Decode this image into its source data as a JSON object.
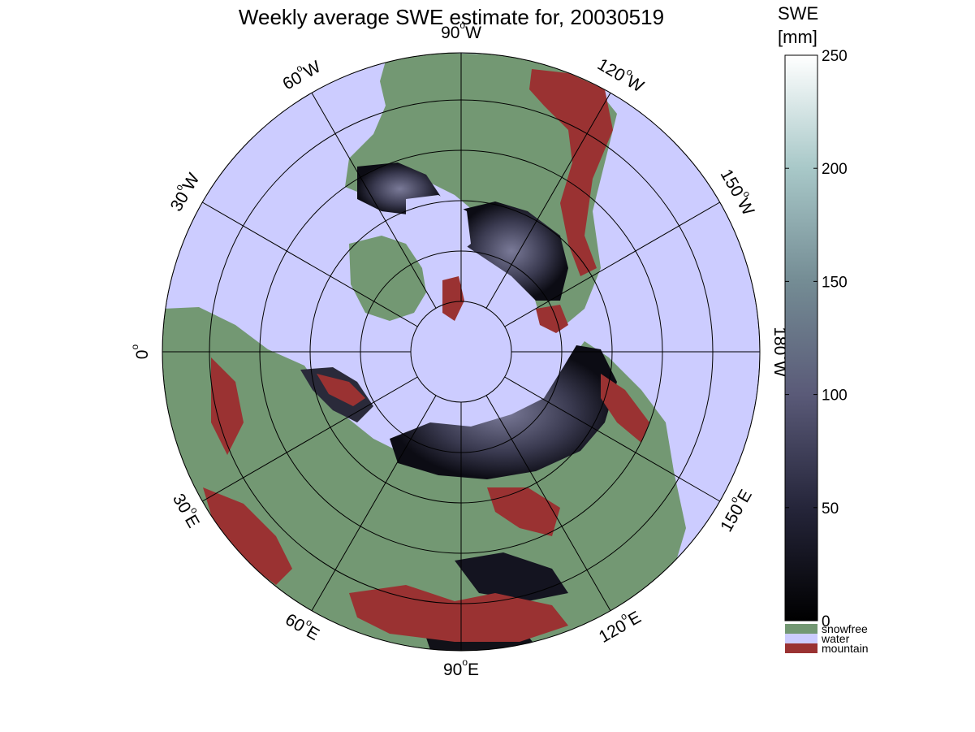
{
  "title": "Weekly average SWE estimate for, 20030519",
  "map": {
    "projection": "north polar stereographic",
    "longitude_labels": [
      {
        "lon": "90",
        "hemi": "W"
      },
      {
        "lon": "120",
        "hemi": "W"
      },
      {
        "lon": "150",
        "hemi": "W"
      },
      {
        "lon": "180",
        "hemi": "W"
      },
      {
        "lon": "150",
        "hemi": "E"
      },
      {
        "lon": "120",
        "hemi": "E"
      },
      {
        "lon": "90",
        "hemi": "E"
      },
      {
        "lon": "60",
        "hemi": "E"
      },
      {
        "lon": "30",
        "hemi": "E"
      },
      {
        "lon": "0",
        "hemi": ""
      },
      {
        "lon": "30",
        "hemi": "W"
      },
      {
        "lon": "60",
        "hemi": "W"
      }
    ],
    "colors": {
      "water": "#ccccff",
      "snowfree": "#739873",
      "mountain": "#9a3232",
      "snow_low": "#0a0a12",
      "snow_mid": "#5a5a78",
      "snow_high": "#a8c8c8"
    }
  },
  "colorbar": {
    "label_line1": "SWE",
    "label_line2": "[mm]",
    "min": 0,
    "max": 250,
    "ticks": [
      "0",
      "50",
      "100",
      "150",
      "200",
      "250"
    ],
    "categories": [
      {
        "label": "snowfree",
        "color": "#739873"
      },
      {
        "label": "water",
        "color": "#ccccff"
      },
      {
        "label": "mountain",
        "color": "#9a3232"
      }
    ]
  }
}
